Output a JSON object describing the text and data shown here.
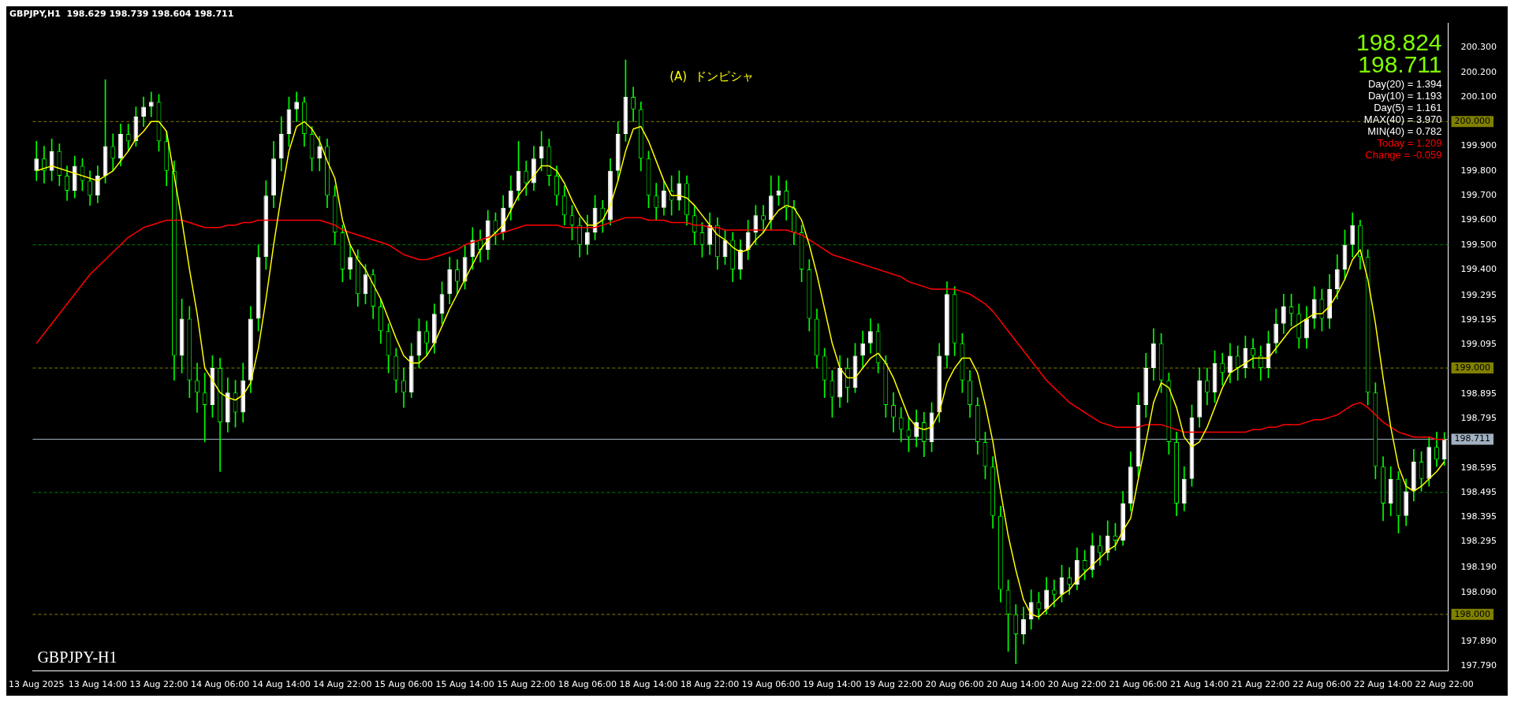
{
  "chart_data": {
    "type": "candlestick",
    "title": "GBPJPY,H1  198.629 198.739 198.604 198.711",
    "categories": [
      "13 Aug 2025",
      null,
      null,
      null,
      null,
      null,
      null,
      null,
      "13 Aug 14:00",
      null,
      null,
      null,
      null,
      null,
      null,
      null,
      "13 Aug 22:00",
      null,
      null,
      null,
      null,
      null,
      null,
      null,
      "14 Aug 06:00",
      null,
      null,
      null,
      null,
      null,
      null,
      null,
      "14 Aug 14:00",
      null,
      null,
      null,
      null,
      null,
      null,
      null,
      "14 Aug 22:00",
      null,
      null,
      null,
      null,
      null,
      null,
      null,
      "15 Aug 06:00",
      null,
      null,
      null,
      null,
      null,
      null,
      null,
      "15 Aug 14:00",
      null,
      null,
      null,
      null,
      null,
      null,
      null,
      "15 Aug 22:00",
      null,
      null,
      null,
      null,
      null,
      null,
      null,
      "18 Aug 06:00",
      null,
      null,
      null,
      null,
      null,
      null,
      null,
      "18 Aug 14:00",
      null,
      null,
      null,
      null,
      null,
      null,
      null,
      "18 Aug 22:00",
      null,
      null,
      null,
      null,
      null,
      null,
      null,
      "19 Aug 06:00",
      null,
      null,
      null,
      null,
      null,
      null,
      null,
      "19 Aug 14:00",
      null,
      null,
      null,
      null,
      null,
      null,
      null,
      "19 Aug 22:00",
      null,
      null,
      null,
      null,
      null,
      null,
      null,
      "20 Aug 06:00",
      null,
      null,
      null,
      null,
      null,
      null,
      null,
      "20 Aug 14:00",
      null,
      null,
      null,
      null,
      null,
      null,
      null,
      "20 Aug 22:00",
      null,
      null,
      null,
      null,
      null,
      null,
      null,
      "21 Aug 06:00",
      null,
      null,
      null,
      null,
      null,
      null,
      null,
      "21 Aug 14:00",
      null,
      null,
      null,
      null,
      null,
      null,
      null,
      "21 Aug 22:00",
      null,
      null,
      null,
      null,
      null,
      null,
      null,
      "22 Aug 06:00",
      null,
      null,
      null,
      null,
      null,
      null,
      null,
      "22 Aug 14:00",
      null,
      null,
      null,
      null,
      null,
      null,
      null,
      "22 Aug 22:00"
    ],
    "ohlc": [
      [
        199.8,
        199.92,
        199.76,
        199.85
      ],
      [
        199.85,
        199.9,
        199.75,
        199.8
      ],
      [
        199.8,
        199.93,
        199.76,
        199.88
      ],
      [
        199.88,
        199.91,
        199.74,
        199.78
      ],
      [
        199.78,
        199.82,
        199.68,
        199.72
      ],
      [
        199.72,
        199.86,
        199.69,
        199.82
      ],
      [
        199.82,
        199.85,
        199.72,
        199.76
      ],
      [
        199.76,
        199.8,
        199.66,
        199.7
      ],
      [
        199.7,
        199.82,
        199.67,
        199.78
      ],
      [
        199.78,
        200.17,
        199.75,
        199.9
      ],
      [
        199.9,
        199.95,
        199.8,
        199.85
      ],
      [
        199.85,
        199.99,
        199.82,
        199.95
      ],
      [
        199.95,
        199.99,
        199.88,
        199.92
      ],
      [
        199.92,
        200.06,
        199.9,
        200.02
      ],
      [
        200.02,
        200.1,
        199.98,
        200.06
      ],
      [
        200.06,
        200.12,
        200.02,
        200.08
      ],
      [
        200.08,
        200.11,
        199.88,
        199.92
      ],
      [
        199.92,
        199.96,
        199.74,
        199.8
      ],
      [
        199.8,
        199.84,
        198.95,
        199.05
      ],
      [
        199.05,
        199.28,
        198.98,
        199.2
      ],
      [
        199.2,
        199.25,
        198.88,
        198.95
      ],
      [
        198.95,
        199.02,
        198.82,
        198.9
      ],
      [
        198.9,
        198.98,
        198.7,
        198.85
      ],
      [
        198.85,
        199.05,
        198.8,
        199.0
      ],
      [
        199.0,
        199.04,
        198.58,
        198.78
      ],
      [
        198.78,
        198.96,
        198.74,
        198.9
      ],
      [
        198.9,
        198.95,
        198.76,
        198.82
      ],
      [
        198.82,
        199.02,
        198.78,
        198.95
      ],
      [
        198.95,
        199.25,
        198.9,
        199.2
      ],
      [
        199.2,
        199.5,
        199.15,
        199.45
      ],
      [
        199.45,
        199.76,
        199.4,
        199.7
      ],
      [
        199.7,
        199.92,
        199.65,
        199.85
      ],
      [
        199.85,
        200.02,
        199.8,
        199.95
      ],
      [
        199.95,
        200.1,
        199.9,
        200.05
      ],
      [
        200.05,
        200.12,
        200.0,
        200.08
      ],
      [
        200.08,
        200.1,
        199.9,
        199.95
      ],
      [
        199.95,
        199.98,
        199.8,
        199.85
      ],
      [
        199.85,
        199.94,
        199.8,
        199.9
      ],
      [
        199.9,
        199.93,
        199.65,
        199.7
      ],
      [
        199.7,
        199.74,
        199.5,
        199.55
      ],
      [
        199.55,
        199.58,
        199.35,
        199.4
      ],
      [
        199.4,
        199.5,
        199.36,
        199.45
      ],
      [
        199.45,
        199.48,
        199.25,
        199.3
      ],
      [
        199.3,
        199.42,
        199.26,
        199.38
      ],
      [
        199.38,
        199.4,
        199.2,
        199.25
      ],
      [
        199.25,
        199.28,
        199.1,
        199.15
      ],
      [
        199.15,
        199.18,
        198.98,
        199.05
      ],
      [
        199.05,
        199.08,
        198.9,
        198.95
      ],
      [
        198.95,
        199.0,
        198.84,
        198.9
      ],
      [
        198.9,
        199.1,
        198.88,
        199.05
      ],
      [
        199.05,
        199.2,
        199.0,
        199.15
      ],
      [
        199.15,
        199.19,
        199.05,
        199.1
      ],
      [
        199.1,
        199.26,
        199.06,
        199.22
      ],
      [
        199.22,
        199.35,
        199.18,
        199.3
      ],
      [
        199.3,
        199.45,
        199.26,
        199.4
      ],
      [
        199.4,
        199.44,
        199.3,
        199.35
      ],
      [
        199.35,
        199.5,
        199.32,
        199.45
      ],
      [
        199.45,
        199.57,
        199.4,
        199.52
      ],
      [
        199.52,
        199.56,
        199.43,
        199.48
      ],
      [
        199.48,
        199.64,
        199.44,
        199.6
      ],
      [
        199.6,
        199.63,
        199.5,
        199.55
      ],
      [
        199.55,
        199.7,
        199.52,
        199.65
      ],
      [
        199.65,
        199.78,
        199.6,
        199.72
      ],
      [
        199.72,
        199.92,
        199.68,
        199.8
      ],
      [
        199.8,
        199.84,
        199.7,
        199.75
      ],
      [
        199.75,
        199.9,
        199.72,
        199.85
      ],
      [
        199.85,
        199.96,
        199.8,
        199.9
      ],
      [
        199.9,
        199.93,
        199.74,
        199.78
      ],
      [
        199.78,
        199.82,
        199.66,
        199.7
      ],
      [
        199.7,
        199.74,
        199.58,
        199.62
      ],
      [
        199.62,
        199.66,
        199.52,
        199.58
      ],
      [
        199.58,
        199.61,
        199.45,
        199.5
      ],
      [
        199.5,
        199.62,
        199.46,
        199.55
      ],
      [
        199.55,
        199.7,
        199.52,
        199.65
      ],
      [
        199.65,
        199.68,
        199.55,
        199.6
      ],
      [
        199.6,
        199.85,
        199.58,
        199.8
      ],
      [
        199.8,
        200.0,
        199.76,
        199.95
      ],
      [
        199.95,
        200.25,
        199.92,
        200.1
      ],
      [
        200.1,
        200.14,
        200.0,
        200.05
      ],
      [
        200.05,
        200.08,
        199.8,
        199.85
      ],
      [
        199.85,
        199.88,
        199.65,
        199.7
      ],
      [
        199.7,
        199.75,
        199.6,
        199.65
      ],
      [
        199.65,
        199.76,
        199.62,
        199.72
      ],
      [
        199.72,
        199.78,
        199.62,
        199.68
      ],
      [
        199.68,
        199.8,
        199.64,
        199.75
      ],
      [
        199.75,
        199.78,
        199.58,
        199.62
      ],
      [
        199.62,
        199.66,
        199.5,
        199.55
      ],
      [
        199.55,
        199.59,
        199.45,
        199.5
      ],
      [
        199.5,
        199.63,
        199.46,
        199.58
      ],
      [
        199.58,
        199.61,
        199.4,
        199.45
      ],
      [
        199.45,
        199.56,
        199.42,
        199.52
      ],
      [
        199.52,
        199.55,
        199.35,
        199.4
      ],
      [
        199.4,
        199.52,
        199.36,
        199.48
      ],
      [
        199.48,
        199.6,
        199.44,
        199.55
      ],
      [
        199.55,
        199.66,
        199.5,
        199.62
      ],
      [
        199.62,
        199.66,
        199.55,
        199.6
      ],
      [
        199.6,
        199.78,
        199.56,
        199.7
      ],
      [
        199.7,
        199.78,
        199.66,
        199.72
      ],
      [
        199.72,
        199.76,
        199.6,
        199.65
      ],
      [
        199.65,
        199.68,
        199.5,
        199.55
      ],
      [
        199.55,
        199.58,
        199.35,
        199.4
      ],
      [
        199.4,
        199.44,
        199.15,
        199.2
      ],
      [
        199.2,
        199.24,
        199.0,
        199.05
      ],
      [
        199.05,
        199.08,
        198.88,
        198.95
      ],
      [
        198.95,
        198.99,
        198.8,
        198.88
      ],
      [
        198.88,
        199.05,
        198.84,
        199.0
      ],
      [
        199.0,
        199.04,
        198.86,
        198.92
      ],
      [
        198.92,
        199.1,
        198.9,
        199.05
      ],
      [
        199.05,
        199.15,
        199.0,
        199.1
      ],
      [
        199.1,
        199.2,
        199.06,
        199.15
      ],
      [
        199.15,
        199.18,
        198.98,
        199.02
      ],
      [
        199.02,
        199.05,
        198.8,
        198.85
      ],
      [
        198.85,
        198.9,
        198.74,
        198.8
      ],
      [
        198.8,
        198.84,
        198.7,
        198.75
      ],
      [
        198.75,
        198.8,
        198.66,
        198.72
      ],
      [
        198.72,
        198.83,
        198.68,
        198.78
      ],
      [
        198.78,
        198.82,
        198.64,
        198.7
      ],
      [
        198.7,
        198.86,
        198.66,
        198.82
      ],
      [
        198.82,
        199.1,
        198.78,
        199.05
      ],
      [
        199.05,
        199.35,
        199.0,
        199.3
      ],
      [
        199.3,
        199.33,
        199.05,
        199.1
      ],
      [
        199.1,
        199.14,
        198.9,
        198.95
      ],
      [
        198.95,
        198.99,
        198.8,
        198.85
      ],
      [
        198.85,
        198.88,
        198.65,
        198.7
      ],
      [
        198.7,
        198.74,
        198.55,
        198.6
      ],
      [
        198.6,
        198.64,
        198.35,
        198.4
      ],
      [
        198.4,
        198.44,
        198.05,
        198.1
      ],
      [
        198.1,
        198.14,
        197.85,
        198.0
      ],
      [
        198.0,
        198.04,
        197.8,
        197.92
      ],
      [
        197.92,
        198.03,
        197.88,
        197.98
      ],
      [
        197.98,
        198.1,
        197.94,
        198.05
      ],
      [
        198.05,
        198.09,
        197.98,
        198.02
      ],
      [
        198.02,
        198.15,
        198.0,
        198.1
      ],
      [
        198.1,
        198.14,
        198.03,
        198.08
      ],
      [
        198.08,
        198.2,
        198.05,
        198.15
      ],
      [
        198.15,
        198.19,
        198.08,
        198.12
      ],
      [
        198.12,
        198.27,
        198.1,
        198.22
      ],
      [
        198.22,
        198.26,
        198.14,
        198.18
      ],
      [
        198.18,
        198.33,
        198.15,
        198.28
      ],
      [
        198.28,
        198.32,
        198.2,
        198.25
      ],
      [
        198.25,
        198.38,
        198.22,
        198.32
      ],
      [
        198.32,
        198.37,
        198.26,
        198.3
      ],
      [
        198.3,
        198.5,
        198.28,
        198.45
      ],
      [
        198.45,
        198.66,
        198.42,
        198.6
      ],
      [
        198.6,
        198.9,
        198.56,
        198.85
      ],
      [
        198.85,
        199.06,
        198.8,
        199.0
      ],
      [
        199.0,
        199.16,
        198.95,
        199.1
      ],
      [
        199.1,
        199.14,
        198.9,
        198.95
      ],
      [
        198.95,
        198.98,
        198.65,
        198.7
      ],
      [
        198.7,
        198.74,
        198.4,
        198.45
      ],
      [
        198.45,
        198.6,
        198.42,
        198.55
      ],
      [
        198.55,
        198.85,
        198.52,
        198.8
      ],
      [
        198.8,
        199.0,
        198.76,
        198.95
      ],
      [
        198.95,
        199.0,
        198.85,
        198.9
      ],
      [
        198.9,
        199.07,
        198.86,
        199.02
      ],
      [
        199.02,
        199.06,
        198.93,
        198.98
      ],
      [
        198.98,
        199.1,
        198.94,
        199.05
      ],
      [
        199.05,
        199.09,
        198.95,
        199.0
      ],
      [
        199.0,
        199.13,
        198.96,
        199.08
      ],
      [
        199.08,
        199.12,
        199.0,
        199.05
      ],
      [
        199.05,
        199.09,
        198.95,
        199.0
      ],
      [
        199.0,
        199.15,
        198.96,
        199.1
      ],
      [
        199.1,
        199.24,
        199.06,
        199.18
      ],
      [
        199.18,
        199.3,
        199.14,
        199.25
      ],
      [
        199.25,
        199.3,
        199.17,
        199.22
      ],
      [
        199.22,
        199.26,
        199.08,
        199.12
      ],
      [
        199.12,
        199.25,
        199.08,
        199.2
      ],
      [
        199.2,
        199.33,
        199.16,
        199.28
      ],
      [
        199.28,
        199.32,
        199.15,
        199.2
      ],
      [
        199.2,
        199.38,
        199.16,
        199.32
      ],
      [
        199.32,
        199.46,
        199.28,
        199.4
      ],
      [
        199.4,
        199.56,
        199.36,
        199.5
      ],
      [
        199.5,
        199.63,
        199.45,
        199.58
      ],
      [
        199.58,
        199.6,
        199.4,
        199.45
      ],
      [
        199.45,
        199.48,
        198.85,
        198.9
      ],
      [
        198.9,
        198.94,
        198.55,
        198.6
      ],
      [
        198.6,
        198.64,
        198.38,
        198.45
      ],
      [
        198.45,
        198.6,
        198.4,
        198.55
      ],
      [
        198.55,
        198.58,
        198.33,
        198.4
      ],
      [
        198.4,
        198.55,
        198.36,
        198.5
      ],
      [
        198.5,
        198.67,
        198.46,
        198.62
      ],
      [
        198.62,
        198.66,
        198.5,
        198.55
      ],
      [
        198.55,
        198.72,
        198.52,
        198.68
      ],
      [
        198.68,
        198.74,
        198.6,
        198.629
      ],
      [
        198.629,
        198.739,
        198.604,
        198.711
      ]
    ],
    "series": [
      {
        "type": "line",
        "color": "#ffff00",
        "values": [
          199.8,
          199.81,
          199.82,
          199.81,
          199.8,
          199.79,
          199.78,
          199.77,
          199.76,
          199.78,
          199.8,
          199.84,
          199.88,
          199.93,
          199.96,
          200.0,
          200.0,
          199.96,
          199.78,
          199.6,
          199.4,
          199.22,
          199.0,
          198.95,
          198.9,
          198.88,
          198.87,
          198.89,
          198.94,
          199.08,
          199.28,
          199.5,
          199.7,
          199.88,
          199.98,
          200.0,
          199.97,
          199.92,
          199.84,
          199.77,
          199.6,
          199.5,
          199.44,
          199.4,
          199.34,
          199.28,
          199.2,
          199.12,
          199.05,
          199.02,
          199.02,
          199.05,
          199.1,
          199.17,
          199.24,
          199.3,
          199.36,
          199.42,
          199.48,
          199.52,
          199.55,
          199.58,
          199.64,
          199.7,
          199.74,
          199.78,
          199.82,
          199.82,
          199.8,
          199.75,
          199.68,
          199.62,
          199.58,
          199.58,
          199.6,
          199.66,
          199.76,
          199.88,
          199.97,
          199.98,
          199.92,
          199.84,
          199.76,
          199.7,
          199.7,
          199.69,
          199.66,
          199.62,
          199.58,
          199.54,
          199.52,
          199.49,
          199.47,
          199.48,
          199.52,
          199.55,
          199.6,
          199.64,
          199.66,
          199.65,
          199.6,
          199.5,
          199.38,
          199.24,
          199.1,
          199.0,
          198.96,
          198.96,
          199.0,
          199.04,
          199.06,
          199.02,
          198.96,
          198.88,
          198.8,
          198.76,
          198.75,
          198.76,
          198.82,
          198.94,
          199.0,
          199.04,
          199.04,
          198.98,
          198.85,
          198.7,
          198.5,
          198.32,
          198.18,
          198.06,
          198.0,
          197.99,
          198.02,
          198.05,
          198.08,
          198.1,
          198.14,
          198.17,
          198.2,
          198.23,
          198.26,
          198.28,
          198.34,
          198.39,
          198.55,
          198.7,
          198.86,
          198.94,
          198.92,
          198.84,
          198.72,
          198.68,
          198.7,
          198.76,
          198.84,
          198.92,
          198.98,
          199.0,
          199.02,
          199.04,
          199.04,
          199.04,
          199.08,
          199.12,
          199.16,
          199.18,
          199.2,
          199.22,
          199.22,
          199.25,
          199.3,
          199.36,
          199.44,
          199.48,
          199.36,
          199.18,
          198.96,
          198.76,
          198.6,
          198.52,
          198.5,
          198.52,
          198.55,
          198.58,
          198.62
        ]
      },
      {
        "type": "line",
        "color": "#ff0000",
        "values": [
          199.1,
          199.14,
          199.18,
          199.22,
          199.26,
          199.3,
          199.34,
          199.38,
          199.41,
          199.44,
          199.47,
          199.5,
          199.53,
          199.55,
          199.57,
          199.58,
          199.59,
          199.6,
          199.6,
          199.6,
          199.59,
          199.58,
          199.57,
          199.57,
          199.57,
          199.58,
          199.58,
          199.59,
          199.59,
          199.6,
          199.6,
          199.6,
          199.6,
          199.6,
          199.6,
          199.6,
          199.6,
          199.6,
          199.59,
          199.58,
          199.56,
          199.55,
          199.54,
          199.53,
          199.52,
          199.51,
          199.5,
          199.48,
          199.46,
          199.45,
          199.44,
          199.44,
          199.45,
          199.46,
          199.47,
          199.48,
          199.5,
          199.51,
          199.52,
          199.53,
          199.54,
          199.55,
          199.56,
          199.57,
          199.58,
          199.58,
          199.58,
          199.58,
          199.58,
          199.57,
          199.57,
          199.57,
          199.57,
          199.57,
          199.58,
          199.59,
          199.6,
          199.61,
          199.61,
          199.61,
          199.6,
          199.6,
          199.6,
          199.59,
          199.59,
          199.59,
          199.58,
          199.58,
          199.57,
          199.57,
          199.56,
          199.56,
          199.56,
          199.56,
          199.56,
          199.56,
          199.56,
          199.56,
          199.56,
          199.55,
          199.54,
          199.52,
          199.5,
          199.48,
          199.46,
          199.45,
          199.44,
          199.43,
          199.42,
          199.41,
          199.4,
          199.39,
          199.38,
          199.37,
          199.35,
          199.34,
          199.33,
          199.32,
          199.32,
          199.32,
          199.32,
          199.31,
          199.3,
          199.28,
          199.26,
          199.23,
          199.19,
          199.15,
          199.11,
          199.07,
          199.03,
          198.99,
          198.95,
          198.92,
          198.89,
          198.86,
          198.84,
          198.82,
          198.8,
          198.78,
          198.77,
          198.76,
          198.76,
          198.76,
          198.76,
          198.77,
          198.77,
          198.77,
          198.76,
          198.75,
          198.74,
          198.74,
          198.74,
          198.74,
          198.74,
          198.74,
          198.74,
          198.74,
          198.74,
          198.75,
          198.75,
          198.76,
          198.76,
          198.77,
          198.77,
          198.77,
          198.78,
          198.79,
          198.79,
          198.8,
          198.81,
          198.83,
          198.85,
          198.86,
          198.84,
          198.81,
          198.78,
          198.76,
          198.74,
          198.73,
          198.72,
          198.72,
          198.72,
          198.71,
          198.71
        ]
      }
    ],
    "ylim": [
      197.77,
      200.4
    ],
    "yticks": [
      {
        "value": 200.3,
        "label": "200.300"
      },
      {
        "value": 200.2,
        "label": "200.200"
      },
      {
        "value": 200.1,
        "label": "200.100"
      },
      {
        "value": 199.9,
        "label": "199.900"
      },
      {
        "value": 199.8,
        "label": "199.800"
      },
      {
        "value": 199.7,
        "label": "199.700"
      },
      {
        "value": 199.6,
        "label": "199.600"
      },
      {
        "value": 199.5,
        "label": "199.500"
      },
      {
        "value": 199.4,
        "label": "199.400"
      },
      {
        "value": 199.295,
        "label": "199.295"
      },
      {
        "value": 199.195,
        "label": "199.195"
      },
      {
        "value": 199.095,
        "label": "199.095"
      },
      {
        "value": 198.895,
        "label": "198.895"
      },
      {
        "value": 198.795,
        "label": "198.795"
      },
      {
        "value": 198.595,
        "label": "198.595"
      },
      {
        "value": 198.495,
        "label": "198.495"
      },
      {
        "value": 198.395,
        "label": "198.395"
      },
      {
        "value": 198.295,
        "label": "198.295"
      },
      {
        "value": 198.19,
        "label": "198.190"
      },
      {
        "value": 198.09,
        "label": "198.090"
      },
      {
        "value": 197.89,
        "label": "197.890"
      },
      {
        "value": 197.79,
        "label": "197.790"
      }
    ],
    "ref_lines": [
      {
        "axis": "y",
        "value": 200,
        "label": "200.000",
        "color": "#808000",
        "line_style": "dashed"
      },
      {
        "axis": "y",
        "value": 199,
        "label": "199.000",
        "color": "#808000",
        "line_style": "dashed"
      },
      {
        "axis": "y",
        "value": 198,
        "label": "198.000",
        "color": "#808000",
        "line_style": "dashed"
      },
      {
        "axis": "y",
        "value": 199.5,
        "color": "#008000",
        "line_style": "dashed"
      },
      {
        "axis": "y",
        "value": 198.495,
        "color": "#008000",
        "line_style": "dashed"
      },
      {
        "axis": "y",
        "value": 198.711,
        "label": "198.711",
        "color": "#a0b0c0",
        "line_style": "solid"
      }
    ],
    "annotations": [
      "GBPJPY-H1",
      "(A)  ドンピシャ",
      "198.824",
      "198.711",
      "Day(20) = 1.394",
      "Day(10) = 1.193",
      "Day(5) = 1.161",
      "MAX(40) = 3.970",
      "MIN(40) = 0.782",
      "Today = 1.209",
      "Change = -0.059"
    ]
  }
}
